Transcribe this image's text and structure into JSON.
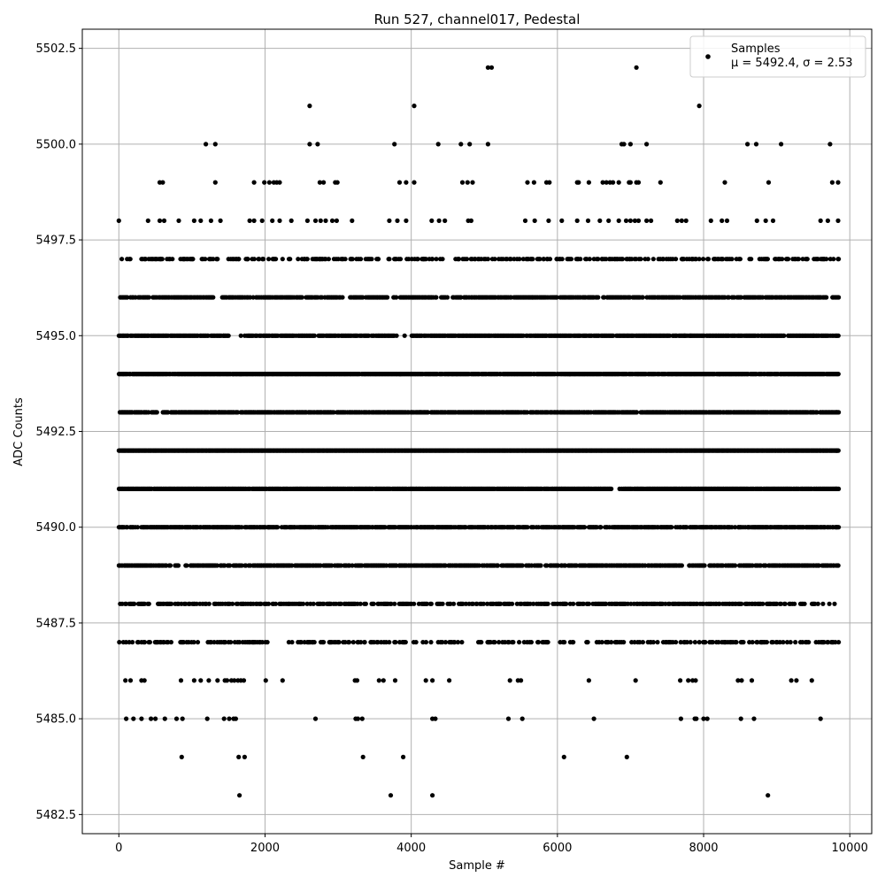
{
  "chart_data": {
    "type": "scatter",
    "title": "Run 527, channel017, Pedestal",
    "xlabel": "Sample #",
    "ylabel": "ADC Counts",
    "xlim": [
      -500,
      10300
    ],
    "ylim": [
      5482.0,
      5503.0
    ],
    "xticks": [
      0,
      2000,
      4000,
      6000,
      8000,
      10000
    ],
    "xtick_labels": [
      "0",
      "2000",
      "4000",
      "6000",
      "8000",
      "10000"
    ],
    "yticks": [
      5482.5,
      5485.0,
      5487.5,
      5490.0,
      5492.5,
      5495.0,
      5497.5,
      5500.0,
      5502.5
    ],
    "ytick_labels": [
      "5482.5",
      "5485.0",
      "5487.5",
      "5490.0",
      "5492.5",
      "5495.0",
      "5497.5",
      "5500.0",
      "5502.5"
    ],
    "grid": true,
    "legend_position": "top-right",
    "series": [
      {
        "name": "Samples",
        "color": "#000000",
        "x_range": [
          0,
          9850
        ],
        "levels": [
          {
            "y": 5483,
            "x": [
              1650,
              3720,
              4290,
              8880
            ]
          },
          {
            "y": 5484,
            "x": [
              860,
              1640,
              1720,
              3340,
              3890,
              6090,
              6950
            ]
          },
          {
            "y": 5485,
            "x": [
              100,
              200,
              310,
              440,
              500,
              630,
              790,
              870,
              1210,
              1440,
              1510,
              1570,
              1600,
              2690,
              3240,
              3270,
              3330,
              4290,
              4330,
              5330,
              5520,
              6500,
              7690,
              7880,
              7900,
              8000,
              8050,
              8510,
              8690,
              9600
            ]
          },
          {
            "y": 5486,
            "x": [
              90,
              160,
              310,
              350,
              850,
              1030,
              1120,
              1230,
              1350,
              1450,
              1480,
              1540,
              1580,
              1630,
              1670,
              1710,
              2010,
              2240,
              3230,
              3260,
              3560,
              3620,
              3780,
              4200,
              4290,
              4520,
              5350,
              5460,
              5500,
              6430,
              7070,
              7680,
              7790,
              7850,
              7890,
              8470,
              8520,
              8660,
              9200,
              9270,
              9480
            ]
          },
          {
            "y": 5487,
            "x": [
              1650,
              2650,
              2880,
              3360,
              4270,
              7820,
              8800
            ]
          },
          {
            "y": 5488,
            "x": [
              1500,
              2880,
              3150,
              4000,
              4680,
              5200,
              6100,
              7400,
              8900,
              9500
            ]
          },
          {
            "y": 5489,
            "x": [
              1950,
              2260,
              3840,
              5180,
              6060,
              6440,
              7410,
              9780
            ]
          },
          {
            "y": 5490,
            "x": [
              1890,
              2050,
              2980,
              6040,
              6590,
              6780,
              9590,
              9820
            ]
          },
          {
            "y": 5491,
            "x": [
              6850,
              6880,
              9810
            ]
          },
          {
            "y": 5492,
            "x": [
              9820
            ]
          },
          {
            "y": 5493,
            "x": [
              1370,
              4120,
              6300,
              9820
            ]
          },
          {
            "y": 5494,
            "x": [
              1560,
              1670,
              3850,
              6170,
              8220
            ]
          },
          {
            "y": 5495,
            "x": [
              1430,
              1670,
              3800,
              3910,
              7740,
              7820,
              9500
            ]
          },
          {
            "y": 5496,
            "x": [
              1290,
              2850,
              3060,
              4020,
              4280,
              4680,
              5660,
              6190
            ]
          },
          {
            "y": 5497,
            "x": [
              40,
              310,
              360,
              570,
              700,
              890,
              1010,
              1180,
              1290,
              1350,
              1500,
              1640,
              1760,
              1970,
              2050,
              2240,
              2540,
              2650,
              2750,
              2830,
              3060,
              3550,
              3690,
              3830,
              4170,
              4290,
              4650,
              4870,
              5050,
              5230,
              5480,
              5810,
              5990,
              6170,
              6400,
              6610,
              6810,
              6990,
              7240,
              7440,
              7710,
              7840,
              8140,
              8310,
              8450,
              8650,
              8840,
              9030,
              9220,
              9420,
              9650,
              9840
            ]
          },
          {
            "y": 5498,
            "x": [
              0,
              400,
              560,
              620,
              820,
              1030,
              1120,
              1260,
              1390,
              1790,
              1850,
              1960,
              2100,
              2200,
              2360,
              2580,
              2690,
              2760,
              2830,
              2920,
              2980,
              3190,
              3700,
              3810,
              3930,
              4280,
              4380,
              4460,
              4780,
              4820,
              5560,
              5690,
              5880,
              6060,
              6270,
              6420,
              6580,
              6700,
              6840,
              6940,
              7000,
              7060,
              7110,
              7220,
              7280,
              7640,
              7700,
              7760,
              8100,
              8250,
              8320,
              8730,
              8850,
              8950,
              9600,
              9700,
              9840
            ]
          },
          {
            "y": 5499,
            "x": [
              560,
              600,
              1320,
              1850,
              1990,
              2060,
              2120,
              2160,
              2200,
              2750,
              2800,
              2960,
              2990,
              3840,
              3930,
              4040,
              4700,
              4770,
              4840,
              5590,
              5680,
              5850,
              5890,
              6270,
              6290,
              6430,
              6620,
              6670,
              6720,
              6760,
              6840,
              6980,
              7000,
              7080,
              7110,
              7410,
              8290,
              8890,
              9760,
              9840
            ]
          },
          {
            "y": 5500,
            "x": [
              1190,
              1320,
              2610,
              2720,
              3770,
              4370,
              4680,
              4800,
              5050,
              6880,
              6910,
              7000,
              7220,
              8600,
              8720,
              9060,
              9730
            ]
          },
          {
            "y": 5501,
            "x": [
              2610,
              4040,
              7940
            ]
          },
          {
            "y": 5502,
            "x": [
              5050,
              5100,
              7080
            ]
          }
        ],
        "dense_levels": {
          "5487": {
            "gaps": [
              [
                2050,
                2300
              ],
              [
                4700,
                4900
              ]
            ],
            "density": 0.35
          },
          "5488": {
            "gaps": [],
            "density": 0.55
          },
          "5489": {
            "gaps": [],
            "density": 0.7
          },
          "5490": {
            "gaps": [],
            "density": 0.85
          },
          "5491": {
            "gaps": [
              [
                6740,
                6890
              ]
            ],
            "density": 0.95
          },
          "5492": {
            "gaps": [],
            "density": 1.0
          },
          "5493": {
            "gaps": [],
            "density": 0.85
          },
          "5494": {
            "gaps": [],
            "density": 0.95
          },
          "5495": {
            "gaps": [
              [
                1500,
                1700
              ],
              [
                3780,
                3990
              ]
            ],
            "density": 0.9
          },
          "5496": {
            "gaps": [
              [
                1300,
                1400
              ],
              [
                3050,
                3150
              ],
              [
                4500,
                4560
              ]
            ],
            "density": 0.75
          },
          "5497": {
            "gaps": [],
            "density": 0.35
          }
        }
      }
    ],
    "legend": {
      "series_label": "Samples",
      "stats_label": "μ = 5492.4, σ = 2.53"
    }
  }
}
